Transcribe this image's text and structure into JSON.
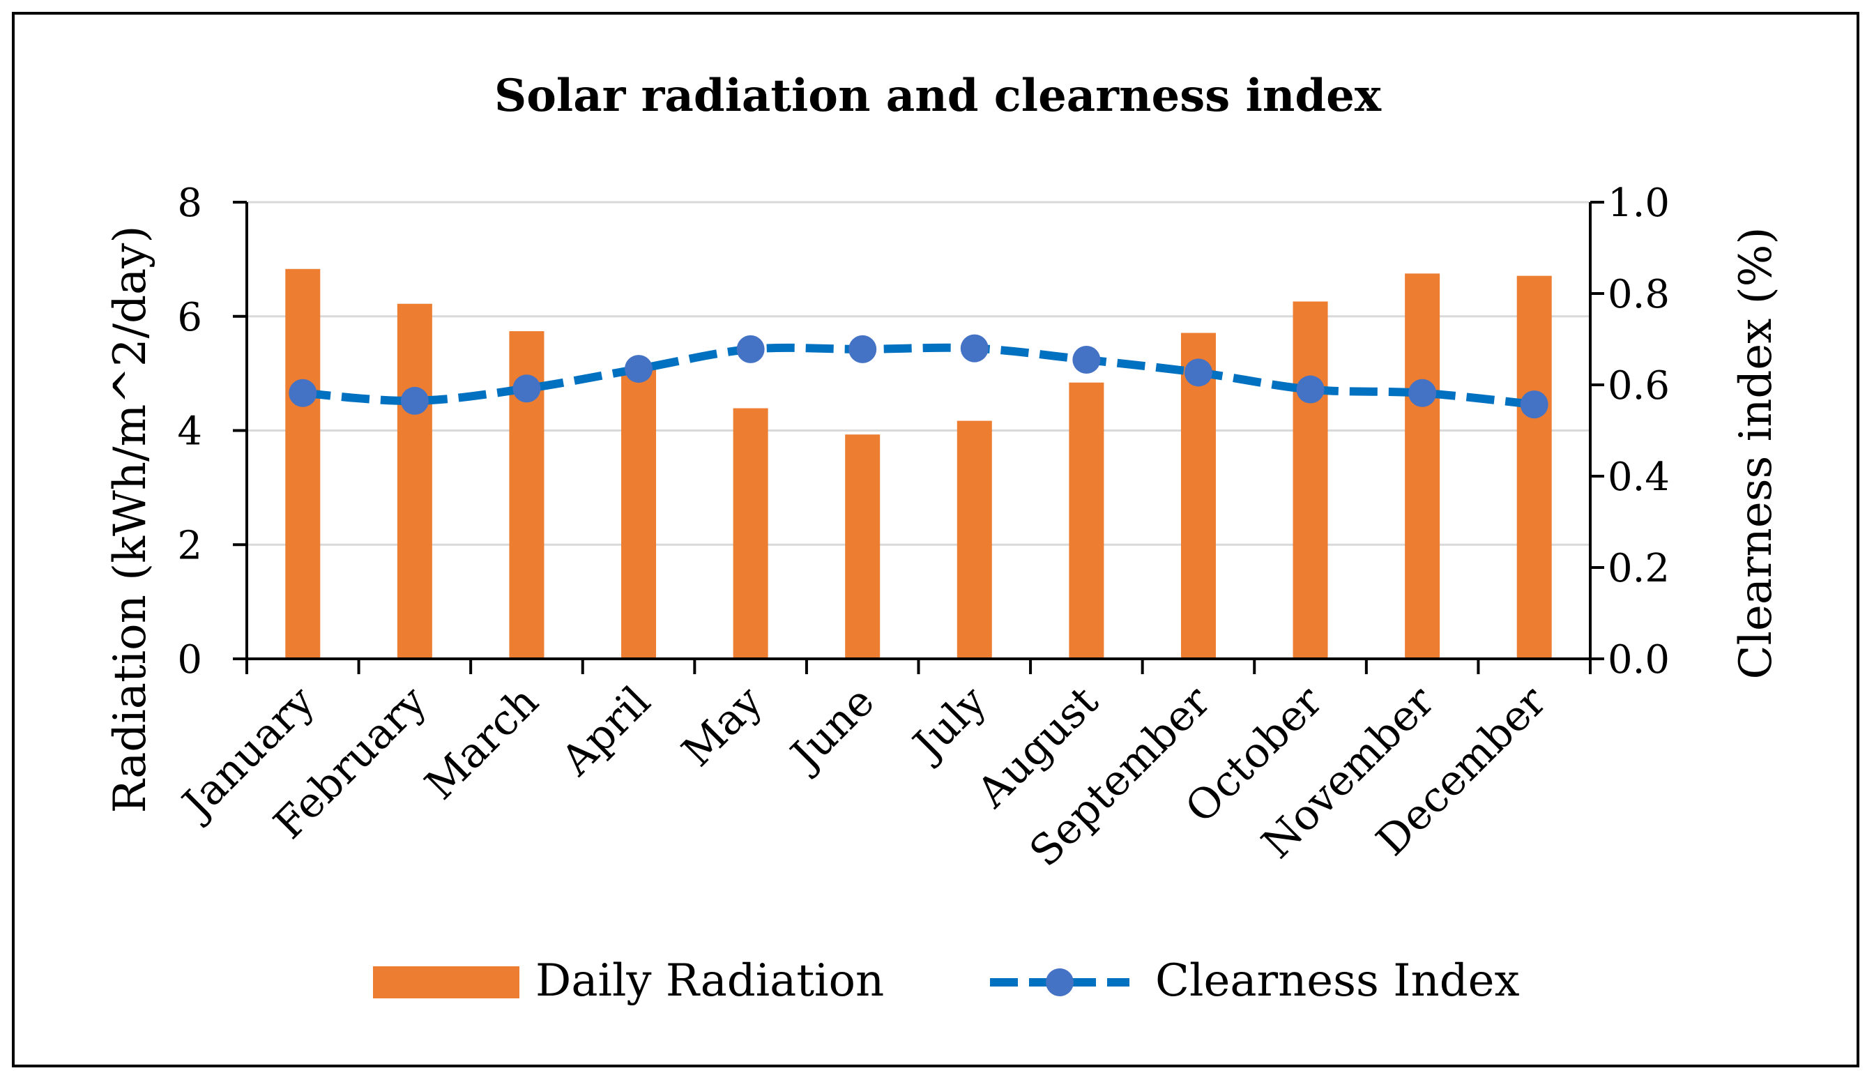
{
  "chart_data": {
    "type": "bar",
    "title": "Solar radiation and clearness index",
    "categories": [
      "January",
      "February",
      "March",
      "April",
      "May",
      "June",
      "July",
      "August",
      "September",
      "October",
      "November",
      "December"
    ],
    "series": [
      {
        "name": "Daily Radiation",
        "kind": "bar",
        "axis": "left",
        "color": "#ED7D31",
        "values": [
          6.83,
          6.22,
          5.74,
          5.07,
          4.39,
          3.93,
          4.17,
          4.84,
          5.71,
          6.26,
          6.75,
          6.71
        ]
      },
      {
        "name": "Clearness Index",
        "kind": "line",
        "line_style": "dashed",
        "marker": "circle",
        "axis": "right",
        "color": "#0070C0",
        "marker_color": "#4472C4",
        "values": [
          0.582,
          0.565,
          0.592,
          0.635,
          0.678,
          0.678,
          0.68,
          0.655,
          0.627,
          0.59,
          0.582,
          0.557
        ]
      }
    ],
    "ylabel": "Radiation  (kWh/m^2/day)",
    "ylim": [
      0,
      8
    ],
    "yticks": [
      "0",
      "2",
      "4",
      "6",
      "8"
    ],
    "y2label": "Clearness index  (%)",
    "y2lim": [
      0,
      1
    ],
    "y2ticks": [
      "0.0",
      "0.2",
      "0.4",
      "0.6",
      "0.8",
      "1.0"
    ],
    "grid": true,
    "legend": "bottom",
    "frame_border": true
  }
}
